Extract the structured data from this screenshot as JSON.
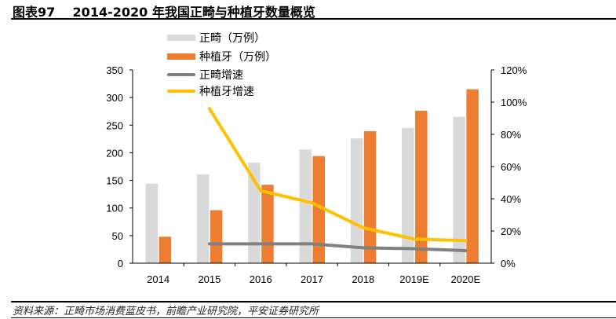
{
  "title": "图表97    2014-2020 年我国正畸与种植牙数量概览",
  "source": "资料来源：正畸市场消费蓝皮书，前瞻产业研究院，平安证券研究所",
  "chart_data": {
    "type": "bar+line",
    "title": "图表97    2014-2020 年我国正畸与种植牙数量概览",
    "categories": [
      "2014",
      "2015",
      "2016",
      "2017",
      "2018",
      "2019E",
      "2020E"
    ],
    "left_axis": {
      "ylim": [
        0,
        350
      ],
      "ticks": [
        "0",
        "50",
        "100",
        "150",
        "200",
        "250",
        "300",
        "350"
      ]
    },
    "right_axis": {
      "ylim": [
        0,
        120
      ],
      "ticks": [
        "0%",
        "20%",
        "40%",
        "60%",
        "80%",
        "100%",
        "120%"
      ]
    },
    "legend_position": "top-left",
    "grid": false,
    "bar_series": [
      {
        "name": "正畸（万例）",
        "color": "#d9d9d9",
        "values": [
          144,
          161,
          182,
          206,
          226,
          245,
          265
        ]
      },
      {
        "name": "种植牙（万例）",
        "color": "#ed7d31",
        "values": [
          48,
          96,
          142,
          194,
          239,
          276,
          315
        ]
      }
    ],
    "line_series": [
      {
        "name": "正畸增速",
        "color": "#808080",
        "axis": "right",
        "values": [
          null,
          12,
          12,
          12,
          9.6,
          9,
          7.8
        ]
      },
      {
        "name": "种植牙增速",
        "color": "#ffc000",
        "axis": "right",
        "values": [
          null,
          96,
          45,
          37.5,
          22,
          15,
          14
        ]
      }
    ]
  }
}
